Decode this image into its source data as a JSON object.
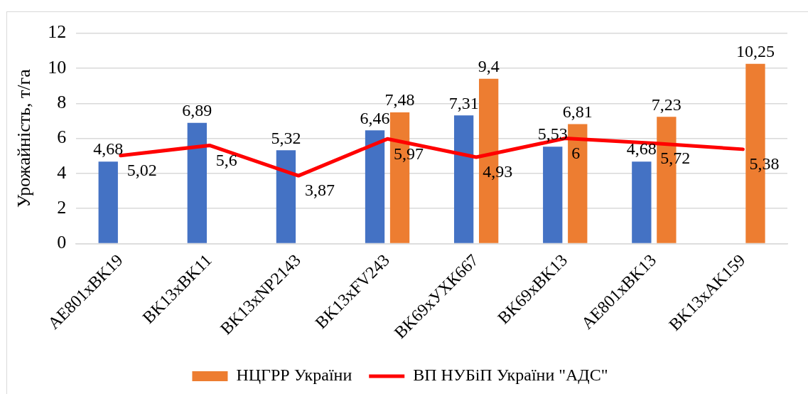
{
  "chart_data": {
    "type": "bar",
    "ylabel": "Урожайність, т/га",
    "categories": [
      "AE801xBK19",
      "BK13xBK11",
      "BK13xNP2143",
      "BK13xFV243",
      "BK69xУХК667",
      "BK69xBK13",
      "AE801xBK13",
      "BK13xAK159"
    ],
    "series": [
      {
        "color": "#4472c4",
        "values": [
          4.68,
          6.89,
          5.32,
          6.46,
          7.31,
          5.53,
          4.68,
          null
        ],
        "value_labels": [
          "4,68",
          "6,89",
          "5,32",
          "6,46",
          "7,31",
          "5,53",
          "4,68",
          null
        ]
      },
      {
        "name": "НЦГРР України",
        "color": "#ed7d31",
        "values": [
          null,
          null,
          null,
          7.48,
          9.4,
          6.81,
          7.23,
          10.25
        ],
        "value_labels": [
          null,
          null,
          null,
          "7,48",
          "9,4",
          "6,81",
          "7,23",
          "10,25"
        ]
      },
      {
        "name": "ВП НУБіП України \"АДС\"",
        "type": "line",
        "color": "#ff0000",
        "line_style": "solid",
        "values": [
          5.02,
          5.6,
          3.87,
          5.97,
          4.93,
          6,
          5.72,
          5.38
        ],
        "value_labels": [
          "5,02",
          "5,6",
          "3,87",
          "5,97",
          "4,93",
          "6",
          "5,72",
          "5,38"
        ]
      }
    ],
    "ylim": [
      0,
      12
    ],
    "yticks": [
      0,
      2,
      4,
      6,
      8,
      10,
      12
    ],
    "grid": "y",
    "legend": "bottom",
    "marker": "none"
  }
}
